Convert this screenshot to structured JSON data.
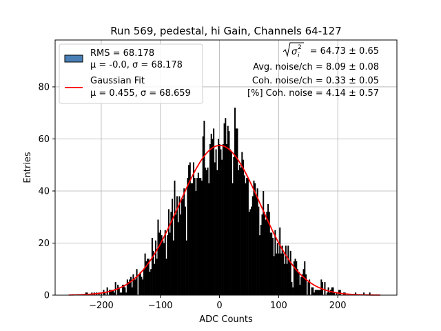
{
  "chart_data": {
    "type": "bar",
    "title": "Run 569, pedestal, hi Gain, Channels 64-127",
    "xlabel": "ADC Counts",
    "ylabel": "Entries",
    "xlim": [
      -278,
      300
    ],
    "ylim": [
      0,
      98
    ],
    "xticks": [
      -200,
      -100,
      0,
      100,
      200
    ],
    "yticks": [
      0,
      20,
      40,
      60,
      80
    ],
    "grid": true,
    "legend_position": "top-left",
    "histogram": {
      "bin_width": 2,
      "range": [
        -255,
        272
      ],
      "mu": -0.0,
      "sigma": 68.178,
      "peak": 58,
      "color": "#000000"
    },
    "series": [
      {
        "name": "RMS = 68.178",
        "type": "histogram",
        "color": "#1f4e8c"
      },
      {
        "name": "Gaussian Fit",
        "type": "line",
        "color": "#ff0000",
        "mu": 0.455,
        "sigma": 68.659,
        "amplitude": 57.5
      }
    ],
    "legend": {
      "entries": [
        {
          "line1": "RMS = 68.178",
          "line2": "μ = -0.0, σ = 68.178",
          "swatch": "patch",
          "color": "#4a7fb5"
        },
        {
          "line1": "Gaussian Fit",
          "line2": "μ = 0.455, σ = 68.659",
          "swatch": "line",
          "color": "#ff0000"
        }
      ]
    },
    "annotations": [
      {
        "text": "= 64.73 ± 0.65",
        "prefix": "sqrt(σ_i^2)"
      },
      {
        "text": "Avg. noise/ch = 8.09 ± 0.08"
      },
      {
        "text": "Coh. noise/ch = 0.33 ± 0.05"
      },
      {
        "text": "[%] Coh. noise = 4.14 ± 0.57"
      }
    ]
  }
}
